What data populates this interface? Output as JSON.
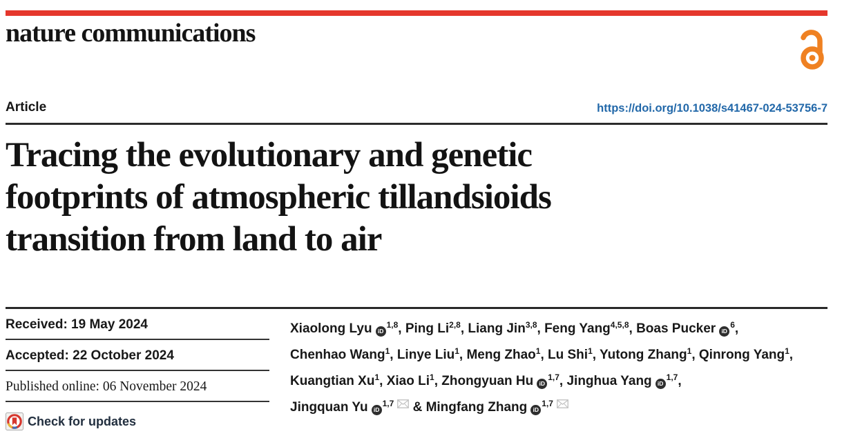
{
  "masthead": {
    "journal": "nature communications"
  },
  "article": {
    "type_label": "Article",
    "doi": "https://doi.org/10.1038/s41467-024-53756-7",
    "title_lines": [
      "Tracing the evolutionary and genetic",
      "footprints of atmospheric tillandsioids",
      "transition from land to air"
    ]
  },
  "dates": {
    "received": "Received: 19 May 2024",
    "accepted": "Accepted: 22 October 2024",
    "published": "Published online: 06 November 2024"
  },
  "badges": {
    "check_updates": "Check for updates"
  },
  "icons": {
    "open_access": "open-access-lock",
    "orcid": "orcid-id",
    "envelope": "email-envelope",
    "crossmark": "crossmark-circle"
  },
  "colors": {
    "brand_red": "#e5372c",
    "doi_blue": "#2268a9",
    "open_access_orange": "#ef8122",
    "rule_dark": "#2b2b2b",
    "crossmark_text": "#222f3f"
  },
  "authors": {
    "lines": [
      {
        "tokens": [
          {
            "name": "Xiaolong Lyu",
            "orcid": true,
            "sup": "1,8"
          },
          {
            "name": "Ping Li",
            "sup": "2,8"
          },
          {
            "name": "Liang Jin",
            "sup": "3,8"
          },
          {
            "name": "Feng Yang",
            "sup": "4,5,8"
          },
          {
            "name": "Boas Pucker",
            "orcid": true,
            "sup": "6"
          }
        ],
        "suffix": ","
      },
      {
        "tokens": [
          {
            "name": "Chenhao Wang",
            "sup": "1"
          },
          {
            "name": "Linye Liu",
            "sup": "1"
          },
          {
            "name": "Meng Zhao",
            "sup": "1"
          },
          {
            "name": "Lu Shi",
            "sup": "1"
          },
          {
            "name": "Yutong Zhang",
            "sup": "1"
          },
          {
            "name": "Qinrong Yang",
            "sup": "1"
          }
        ],
        "suffix": ","
      },
      {
        "tokens": [
          {
            "name": "Kuangtian Xu",
            "sup": "1"
          },
          {
            "name": "Xiao Li",
            "sup": "1"
          },
          {
            "name": "Zhongyuan Hu",
            "orcid": true,
            "sup": "1,7"
          },
          {
            "name": "Jinghua Yang",
            "orcid": true,
            "sup": "1,7"
          }
        ],
        "suffix": ","
      },
      {
        "tokens": [
          {
            "name": "Jingquan Yu",
            "orcid": true,
            "sup": "1,7",
            "envelope": true
          },
          {
            "name": "Mingfang Zhang",
            "orcid": true,
            "sup": "1,7",
            "envelope": true,
            "amp": true
          }
        ],
        "suffix": ""
      }
    ]
  }
}
